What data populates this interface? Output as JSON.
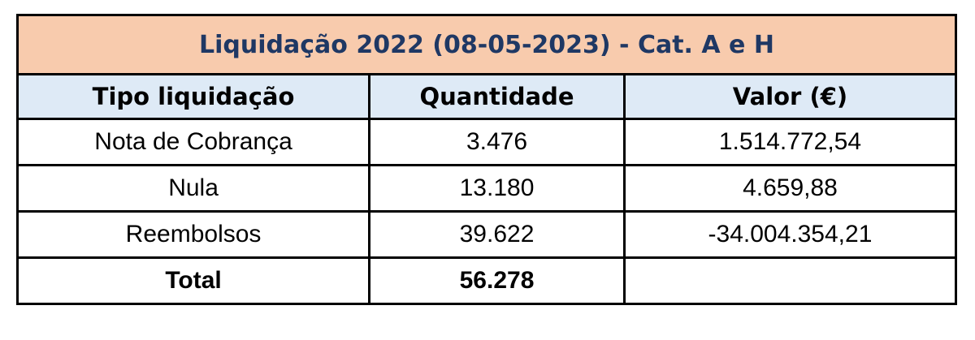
{
  "chart_data": {
    "type": "table",
    "title": "Liquidação 2022 (08-05-2023) - Cat. A e H",
    "columns": [
      "Tipo liquidação",
      "Quantidade",
      "Valor (€)"
    ],
    "rows": [
      [
        "Nota de Cobrança",
        "3.476",
        "1.514.772,54"
      ],
      [
        "Nula",
        "13.180",
        "4.659,88"
      ],
      [
        "Reembolsos",
        "39.622",
        "-34.004.354,21"
      ],
      [
        "Total",
        "56.278",
        ""
      ]
    ],
    "totals_row_index": 3
  },
  "colors": {
    "title_bg": "#F8CBAD",
    "title_text": "#1F3864",
    "header_bg": "#DEEAF6",
    "border": "#000000",
    "cell_bg": "#FFFFFF",
    "body_text": "#000000"
  }
}
